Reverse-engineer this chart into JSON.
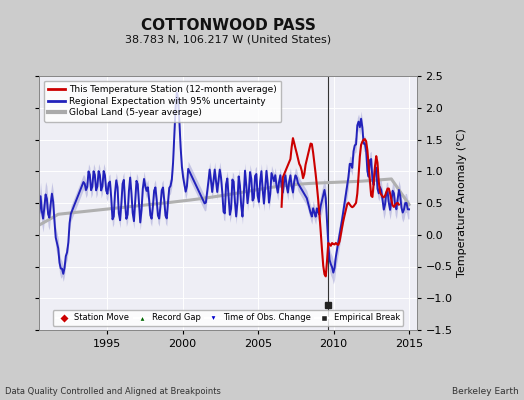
{
  "title": "COTTONWOOD PASS",
  "subtitle": "38.783 N, 106.217 W (United States)",
  "ylabel": "Temperature Anomaly (°C)",
  "xlabel_left": "Data Quality Controlled and Aligned at Breakpoints",
  "xlabel_right": "Berkeley Earth",
  "ylim": [
    -1.5,
    2.5
  ],
  "xlim_start": 1990.5,
  "xlim_end": 2015.5,
  "xticks": [
    1995,
    2000,
    2005,
    2010,
    2015
  ],
  "yticks_right": [
    -1.5,
    -1.0,
    -0.5,
    0.0,
    0.5,
    1.0,
    1.5,
    2.0,
    2.5
  ],
  "bg_color": "#cccccc",
  "plot_bg_color": "#eeeef5",
  "grid_color": "#ffffff",
  "empirical_break_x": 2009.6,
  "legend1_items": [
    {
      "label": "This Temperature Station (12-month average)",
      "color": "#cc0000",
      "lw": 2
    },
    {
      "label": "Regional Expectation with 95% uncertainty",
      "color": "#2222bb",
      "lw": 2
    },
    {
      "label": "Global Land (5-year average)",
      "color": "#aaaaaa",
      "lw": 3
    }
  ],
  "legend2_items": [
    {
      "label": "Station Move",
      "marker": "D",
      "color": "#cc0000"
    },
    {
      "label": "Record Gap",
      "marker": "^",
      "color": "#006600"
    },
    {
      "label": "Time of Obs. Change",
      "marker": "v",
      "color": "#0000cc"
    },
    {
      "label": "Empirical Break",
      "marker": "s",
      "color": "#222222"
    }
  ]
}
